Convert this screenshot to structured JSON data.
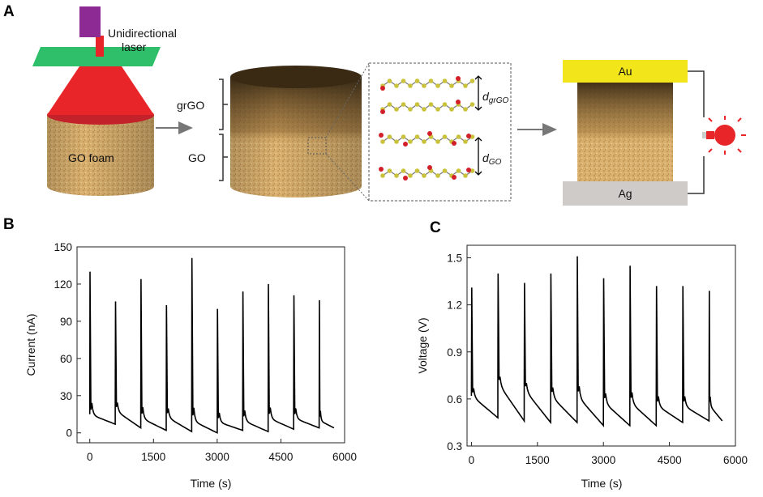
{
  "panels": {
    "a": "A",
    "b": "B",
    "c": "C"
  },
  "schematic": {
    "laser_label_1": "Unidirectional",
    "laser_label_2": "laser",
    "foam_label": "GO foam",
    "grgo_label": "grGO",
    "go_label": "GO",
    "d_grgo_d": "d",
    "d_grgo_sub": "grGO",
    "d_go_d": "d",
    "d_go_sub": "GO",
    "top_electrode": "Au",
    "bottom_electrode": "Ag",
    "colors": {
      "laser_head": "#8e2a94",
      "beam": "#e8262a",
      "lens": "#2fbf6a",
      "au": "#f2e61b",
      "ag": "#cfcbc9",
      "bulb": "#e8262a"
    }
  },
  "chart_data": [
    {
      "type": "line",
      "id": "B",
      "title": "",
      "xlabel": "Time (s)",
      "ylabel": "Current (nA)",
      "xlim": [
        -300,
        6000
      ],
      "ylim": [
        -8,
        150
      ],
      "xticks": [
        0,
        1500,
        3000,
        4500,
        6000
      ],
      "yticks": [
        0,
        30,
        60,
        90,
        120,
        150
      ],
      "xtick_labels": [
        "0",
        "1500",
        "3000",
        "4500",
        "6000"
      ],
      "ytick_labels": [
        "0",
        "30",
        "60",
        "90",
        "120",
        "150"
      ],
      "pulse_times": [
        0,
        600,
        1200,
        1800,
        2400,
        3000,
        3600,
        4200,
        4800,
        5400
      ],
      "peaks": [
        130,
        106,
        124,
        103,
        141,
        100,
        114,
        120,
        111,
        107
      ],
      "baseline_start": [
        15,
        18,
        12,
        13,
        10,
        9,
        10,
        12,
        12,
        10
      ],
      "baseline_end": [
        7,
        4,
        2,
        1,
        0,
        2,
        1,
        3,
        4,
        4
      ],
      "end_time": 5750
    },
    {
      "type": "line",
      "id": "C",
      "title": "",
      "xlabel": "Time (s)",
      "ylabel": "Voltage (V)",
      "xlim": [
        -100,
        6000
      ],
      "ylim": [
        0.3,
        1.58
      ],
      "xticks": [
        0,
        1500,
        3000,
        4500,
        6000
      ],
      "yticks": [
        0.3,
        0.6,
        0.9,
        1.2,
        1.5
      ],
      "xtick_labels": [
        "0",
        "1500",
        "3000",
        "4500",
        "6000"
      ],
      "ytick_labels": [
        "0.3",
        "0.6",
        "0.9",
        "1.2",
        "1.5"
      ],
      "pulse_times": [
        0,
        600,
        1200,
        1800,
        2400,
        3000,
        3600,
        4200,
        4800,
        5400
      ],
      "peaks": [
        1.31,
        1.4,
        1.34,
        1.4,
        1.51,
        1.37,
        1.45,
        1.32,
        1.32,
        1.29
      ],
      "baseline_start": [
        0.62,
        0.7,
        0.66,
        0.62,
        0.62,
        0.58,
        0.58,
        0.56,
        0.56,
        0.56
      ],
      "baseline_end": [
        0.48,
        0.46,
        0.45,
        0.45,
        0.43,
        0.43,
        0.43,
        0.45,
        0.46,
        0.46
      ],
      "end_time": 5700
    }
  ]
}
